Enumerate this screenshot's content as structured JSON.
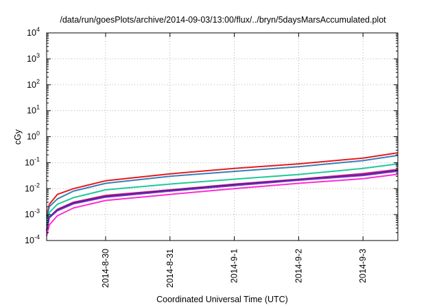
{
  "chart_data": {
    "type": "line",
    "title": "/data/run/goesPlots/archive/2014-09-03/13:00/flux/../bryn/5daysMarsAccumulated.plot",
    "xlabel": "Coordinated Universal Time (UTC)",
    "ylabel": "cGy",
    "yscale": "log",
    "ylim": [
      0.0001,
      10000
    ],
    "xlim": [
      "2014-08-29T02:00",
      "2014-09-03T13:00"
    ],
    "grid": true,
    "y_ticks": [
      {
        "value": 0.0001,
        "base": "10",
        "exp": "-4"
      },
      {
        "value": 0.001,
        "base": "10",
        "exp": "-3"
      },
      {
        "value": 0.01,
        "base": "10",
        "exp": "-2"
      },
      {
        "value": 0.1,
        "base": "10",
        "exp": "-1"
      },
      {
        "value": 1,
        "base": "10",
        "exp": "0"
      },
      {
        "value": 10,
        "base": "10",
        "exp": "1"
      },
      {
        "value": 100,
        "base": "10",
        "exp": "2"
      },
      {
        "value": 1000,
        "base": "10",
        "exp": "3"
      },
      {
        "value": 10000,
        "base": "10",
        "exp": "4"
      }
    ],
    "x_ticks": [
      {
        "value": "2014-08-30T00:00",
        "label": "2014-8-30"
      },
      {
        "value": "2014-08-31T00:00",
        "label": "2014-8-31"
      },
      {
        "value": "2014-09-01T00:00",
        "label": "2014-9-1"
      },
      {
        "value": "2014-09-02T00:00",
        "label": "2014-9-2"
      },
      {
        "value": "2014-09-03T00:00",
        "label": "2014-9-3"
      }
    ],
    "series": [
      {
        "color": "#e41a1c",
        "x": [
          "2014-08-29T02:00",
          "2014-08-29T03:00",
          "2014-08-29T06:00",
          "2014-08-29T12:00",
          "2014-08-30T00:00",
          "2014-08-31T00:00",
          "2014-09-01T00:00",
          "2014-09-02T00:00",
          "2014-09-03T00:00",
          "2014-09-03T13:00"
        ],
        "y": [
          0.0009,
          0.0025,
          0.006,
          0.01,
          0.02,
          0.037,
          0.06,
          0.09,
          0.15,
          0.24
        ]
      },
      {
        "color": "#377eb8",
        "x": [
          "2014-08-29T02:00",
          "2014-08-29T03:00",
          "2014-08-29T06:00",
          "2014-08-29T12:00",
          "2014-08-30T00:00",
          "2014-08-31T00:00",
          "2014-09-01T00:00",
          "2014-09-02T00:00",
          "2014-09-03T00:00",
          "2014-09-03T13:00"
        ],
        "y": [
          0.0007,
          0.002,
          0.004,
          0.008,
          0.016,
          0.03,
          0.046,
          0.07,
          0.12,
          0.19
        ]
      },
      {
        "color": "#1dc99a",
        "x": [
          "2014-08-29T02:00",
          "2014-08-29T03:00",
          "2014-08-29T06:00",
          "2014-08-29T12:00",
          "2014-08-30T00:00",
          "2014-08-31T00:00",
          "2014-09-01T00:00",
          "2014-09-02T00:00",
          "2014-09-03T00:00",
          "2014-09-03T13:00"
        ],
        "y": [
          0.0004,
          0.0012,
          0.0025,
          0.0045,
          0.009,
          0.015,
          0.023,
          0.035,
          0.06,
          0.09
        ]
      },
      {
        "color": "#e41a8a",
        "x": [
          "2014-08-29T02:00",
          "2014-08-29T03:00",
          "2014-08-29T06:00",
          "2014-08-29T12:00",
          "2014-08-30T00:00",
          "2014-08-31T00:00",
          "2014-09-01T00:00",
          "2014-09-02T00:00",
          "2014-09-03T00:00",
          "2014-09-03T13:00"
        ],
        "y": [
          0.00025,
          0.0008,
          0.0016,
          0.003,
          0.0055,
          0.009,
          0.015,
          0.023,
          0.038,
          0.055
        ]
      },
      {
        "color": "#222288",
        "x": [
          "2014-08-29T02:00",
          "2014-08-29T03:00",
          "2014-08-29T06:00",
          "2014-08-29T12:00",
          "2014-08-30T00:00",
          "2014-08-31T00:00",
          "2014-09-01T00:00",
          "2014-09-02T00:00",
          "2014-09-03T00:00",
          "2014-09-03T13:00"
        ],
        "y": [
          0.00025,
          0.0008,
          0.0015,
          0.0028,
          0.005,
          0.0085,
          0.014,
          0.022,
          0.034,
          0.05
        ]
      },
      {
        "color": "#7b2fbe",
        "x": [
          "2014-08-29T02:00",
          "2014-08-29T03:00",
          "2014-08-29T06:00",
          "2014-08-29T12:00",
          "2014-08-30T00:00",
          "2014-08-31T00:00",
          "2014-09-01T00:00",
          "2014-09-02T00:00",
          "2014-09-03T00:00",
          "2014-09-03T13:00"
        ],
        "y": [
          0.00023,
          0.00075,
          0.0014,
          0.0026,
          0.0047,
          0.008,
          0.013,
          0.021,
          0.032,
          0.047
        ]
      },
      {
        "color": "#ff2bd6",
        "x": [
          "2014-08-29T02:00",
          "2014-08-29T03:00",
          "2014-08-29T06:00",
          "2014-08-29T12:00",
          "2014-08-30T00:00",
          "2014-08-31T00:00",
          "2014-09-01T00:00",
          "2014-09-02T00:00",
          "2014-09-03T00:00",
          "2014-09-03T13:00"
        ],
        "y": [
          0.00015,
          0.0004,
          0.0009,
          0.0018,
          0.0035,
          0.006,
          0.01,
          0.016,
          0.024,
          0.036
        ]
      }
    ]
  }
}
